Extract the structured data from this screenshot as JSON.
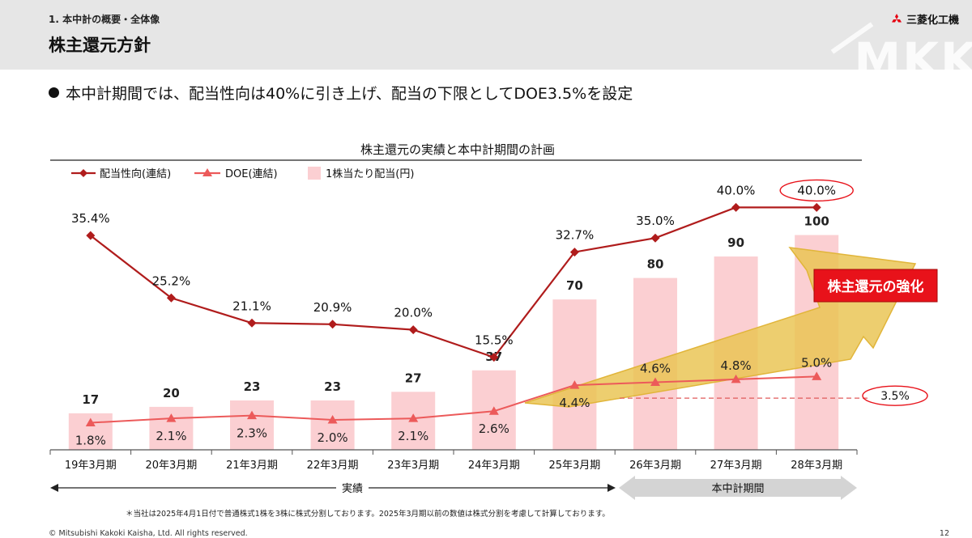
{
  "header": {
    "section": "1. 本中計の概要・全体像",
    "title": "株主還元方針",
    "company": "三菱化工機",
    "watermark": "MKK"
  },
  "bullet": "本中計期間では、配当性向は40%に引き上げ、配当の下限としてDOE3.5%を設定",
  "colors": {
    "payout_line": "#b01c1c",
    "doe_line": "#ec5a5a",
    "dividend_bar": "#fbcfd2",
    "callout": "#e8121a",
    "arrow": "#e9c34f"
  },
  "chart_data": {
    "type": "bar+line",
    "title": "株主還元の実績と本中計期間の計画",
    "categories": [
      "19年3月期",
      "20年3月期",
      "21年3月期",
      "22年3月期",
      "23年3月期",
      "24年3月期",
      "25年3月期",
      "26年3月期",
      "27年3月期",
      "28年3月期"
    ],
    "legend": {
      "payout": "配当性向(連結)",
      "doe": "DOE(連結)",
      "dividend": "1株当たり配当(円)"
    },
    "dividend": [
      17,
      20,
      23,
      23,
      27,
      37,
      70,
      80,
      90,
      100
    ],
    "payout_ratio": [
      35.4,
      25.2,
      21.1,
      20.9,
      20.0,
      15.5,
      32.7,
      35.0,
      40.0,
      40.0
    ],
    "payout_labels": [
      "35.4%",
      "25.2%",
      "21.1%",
      "20.9%",
      "20.0%",
      "15.5%",
      "32.7%",
      "35.0%",
      "40.0%",
      "40.0%"
    ],
    "doe": [
      1.8,
      2.1,
      2.3,
      2.0,
      2.1,
      2.6,
      4.4,
      4.6,
      4.8,
      5.0
    ],
    "doe_labels": [
      "1.8%",
      "2.1%",
      "2.3%",
      "2.0%",
      "2.1%",
      "2.6%",
      "4.4%",
      "4.6%",
      "4.8%",
      "5.0%"
    ],
    "doe_floor": 3.5,
    "doe_floor_label": "3.5%",
    "callout": "株主還元の強化",
    "periods": {
      "actual": "実績",
      "plan": "本中計期間"
    }
  },
  "footnote": "＊当社は2025年4月1日付で普通株式1株を3株に株式分割しております。2025年3月期以前の数値は株式分割を考慮して計算しております。",
  "copyright": "© Mitsubishi Kakoki Kaisha, Ltd. All rights reserved.",
  "page_number": "12"
}
